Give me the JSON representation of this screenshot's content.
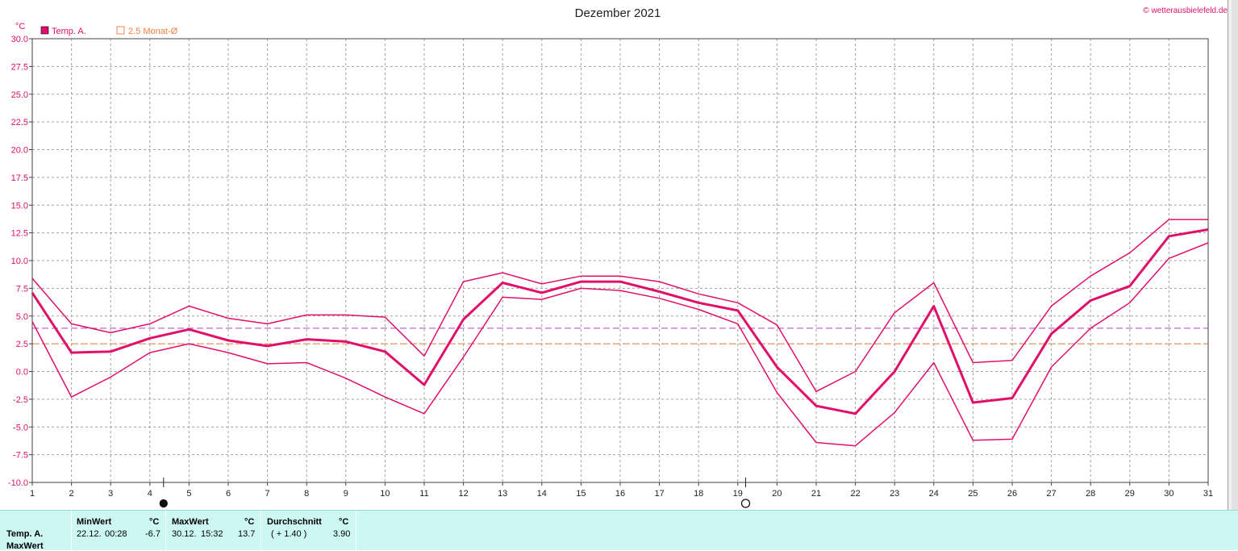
{
  "chart_data": {
    "type": "line",
    "title": "Dezember 2021",
    "ylabel": "°C",
    "copyright": "© wetterausbielefeld.de",
    "x": [
      1,
      2,
      3,
      4,
      5,
      6,
      7,
      8,
      9,
      10,
      11,
      12,
      13,
      14,
      15,
      16,
      17,
      18,
      19,
      20,
      21,
      22,
      23,
      24,
      25,
      26,
      27,
      28,
      29,
      30,
      31
    ],
    "ylim": [
      -10,
      30
    ],
    "yticks": [
      "30.0",
      "27.5",
      "25.0",
      "22.5",
      "20.0",
      "17.5",
      "15.0",
      "12.5",
      "10.0",
      "7.5",
      "5.0",
      "2.5",
      "0.0",
      "-2.5",
      "-5.0",
      "-7.5",
      "-10.0"
    ],
    "grid": true,
    "legend": [
      {
        "label": "Temp. A.",
        "color": "#e0106a",
        "marker": "filled-square"
      },
      {
        "label": "2.5 Monat-Ø",
        "color": "#f08040",
        "marker": "hollow-square"
      }
    ],
    "series": [
      {
        "color": "#e0106a",
        "width": 3,
        "values": [
          7.1,
          1.7,
          1.8,
          3.0,
          3.8,
          2.8,
          2.3,
          2.9,
          2.7,
          1.8,
          -1.2,
          4.7,
          8.0,
          7.1,
          8.1,
          8.1,
          7.2,
          6.2,
          5.5,
          0.4,
          -3.1,
          -3.8,
          0.0,
          5.9,
          -2.8,
          -2.4,
          3.4,
          6.4,
          7.7,
          12.2,
          12.8
        ]
      },
      {
        "color": "#e0106a",
        "width": 1.5,
        "values": [
          8.4,
          4.3,
          3.5,
          4.3,
          5.9,
          4.8,
          4.3,
          5.1,
          5.1,
          4.9,
          1.4,
          8.1,
          8.9,
          7.9,
          8.6,
          8.6,
          8.1,
          7.0,
          6.2,
          4.2,
          -1.8,
          0.0,
          5.3,
          8.0,
          0.8,
          1.0,
          5.9,
          8.6,
          10.7,
          13.7,
          13.7
        ]
      },
      {
        "color": "#e0106a",
        "width": 1.5,
        "values": [
          4.5,
          -2.3,
          -0.5,
          1.7,
          2.5,
          1.7,
          0.7,
          0.8,
          -0.6,
          -2.3,
          -3.8,
          1.3,
          6.7,
          6.5,
          7.5,
          7.3,
          6.6,
          5.6,
          4.3,
          -1.9,
          -6.4,
          -6.7,
          -3.7,
          0.8,
          -6.2,
          -6.1,
          0.4,
          3.9,
          6.2,
          10.2,
          11.6
        ]
      }
    ],
    "reference_lines": [
      {
        "value": 3.9,
        "color": "#b040c0"
      },
      {
        "value": 2.5,
        "color": "#f08040"
      }
    ],
    "moon_phases": [
      {
        "day": 4.35,
        "phase": "new-moon"
      },
      {
        "day": 19.2,
        "phase": "full-moon"
      }
    ]
  },
  "stats": {
    "row_label": "Temp. A.",
    "row2_label": "MaxWert",
    "min": {
      "header": "MinWert",
      "unit": "°C",
      "date": "22.12.",
      "time": "00:28",
      "value": "-6.7"
    },
    "max": {
      "header": "MaxWert",
      "unit": "°C",
      "date": "30.12.",
      "time": "15:32",
      "value": "13.7"
    },
    "avg": {
      "header": "Durchschnitt",
      "unit": "°C",
      "diff": "( + 1.40 )",
      "value": "3.90"
    }
  }
}
